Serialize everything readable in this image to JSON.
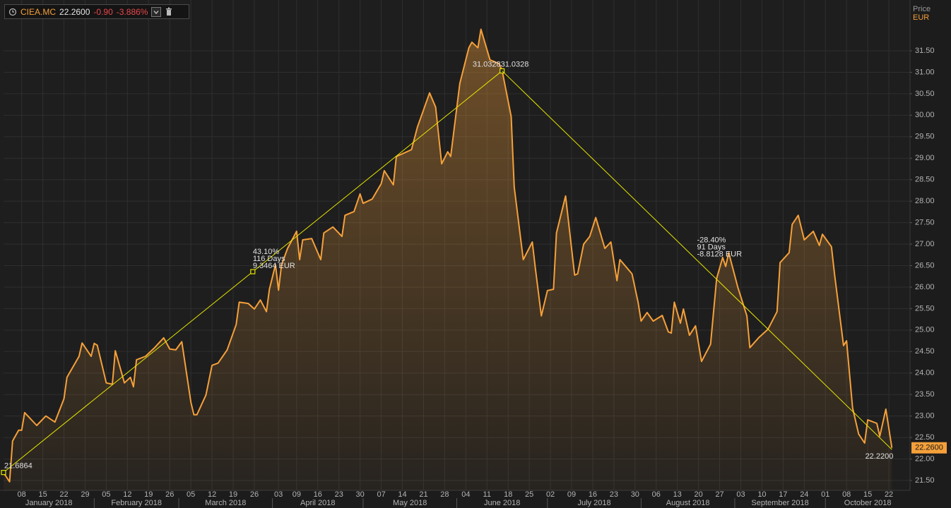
{
  "header": {
    "symbol": "CIEA.MC",
    "price": "22.2600",
    "change": "-0.90",
    "change_pct": "-3.886%"
  },
  "chart_data": {
    "type": "area",
    "y_axis_title": "Price",
    "y_axis_unit": "EUR",
    "color": "#f5a03a",
    "grid": true,
    "xlim": [
      "2018-01-02",
      "2018-10-29"
    ],
    "ylim": [
      21.27,
      32.6
    ],
    "yticks": [
      {
        "value": 21.5,
        "label": "21.50"
      },
      {
        "value": 22,
        "label": "22.00"
      },
      {
        "value": 22.5,
        "label": "22.50"
      },
      {
        "value": 23,
        "label": "23.00"
      },
      {
        "value": 23.5,
        "label": "23.50"
      },
      {
        "value": 24,
        "label": "24.00"
      },
      {
        "value": 24.5,
        "label": "24.50"
      },
      {
        "value": 25,
        "label": "25.00"
      },
      {
        "value": 25.5,
        "label": "25.50"
      },
      {
        "value": 26,
        "label": "26.00"
      },
      {
        "value": 26.5,
        "label": "26.50"
      },
      {
        "value": 27,
        "label": "27.00"
      },
      {
        "value": 27.5,
        "label": "27.50"
      },
      {
        "value": 28,
        "label": "28.00"
      },
      {
        "value": 28.5,
        "label": "28.50"
      },
      {
        "value": 29,
        "label": "29.00"
      },
      {
        "value": 29.5,
        "label": "29.50"
      },
      {
        "value": 30,
        "label": "30.00"
      },
      {
        "value": 30.5,
        "label": "30.50"
      },
      {
        "value": 31,
        "label": "31.00"
      },
      {
        "value": 31.5,
        "label": "31.50"
      }
    ],
    "xticks": [
      {
        "value": "2018-01-08",
        "label": "08"
      },
      {
        "value": "2018-01-15",
        "label": "15"
      },
      {
        "value": "2018-01-22",
        "label": "22"
      },
      {
        "value": "2018-01-29",
        "label": "29"
      },
      {
        "value": "2018-02-05",
        "label": "05"
      },
      {
        "value": "2018-02-12",
        "label": "12"
      },
      {
        "value": "2018-02-19",
        "label": "19"
      },
      {
        "value": "2018-02-26",
        "label": "26"
      },
      {
        "value": "2018-03-05",
        "label": "05"
      },
      {
        "value": "2018-03-12",
        "label": "12"
      },
      {
        "value": "2018-03-19",
        "label": "19"
      },
      {
        "value": "2018-03-26",
        "label": "26"
      },
      {
        "value": "2018-04-03",
        "label": "03"
      },
      {
        "value": "2018-04-09",
        "label": "09"
      },
      {
        "value": "2018-04-16",
        "label": "16"
      },
      {
        "value": "2018-04-23",
        "label": "23"
      },
      {
        "value": "2018-04-30",
        "label": "30"
      },
      {
        "value": "2018-05-07",
        "label": "07"
      },
      {
        "value": "2018-05-14",
        "label": "14"
      },
      {
        "value": "2018-05-21",
        "label": "21"
      },
      {
        "value": "2018-05-28",
        "label": "28"
      },
      {
        "value": "2018-06-04",
        "label": "04"
      },
      {
        "value": "2018-06-11",
        "label": "11"
      },
      {
        "value": "2018-06-18",
        "label": "18"
      },
      {
        "value": "2018-06-25",
        "label": "25"
      },
      {
        "value": "2018-07-02",
        "label": "02"
      },
      {
        "value": "2018-07-09",
        "label": "09"
      },
      {
        "value": "2018-07-16",
        "label": "16"
      },
      {
        "value": "2018-07-23",
        "label": "23"
      },
      {
        "value": "2018-07-30",
        "label": "30"
      },
      {
        "value": "2018-08-06",
        "label": "06"
      },
      {
        "value": "2018-08-13",
        "label": "13"
      },
      {
        "value": "2018-08-20",
        "label": "20"
      },
      {
        "value": "2018-08-27",
        "label": "27"
      },
      {
        "value": "2018-09-03",
        "label": "03"
      },
      {
        "value": "2018-09-10",
        "label": "10"
      },
      {
        "value": "2018-09-17",
        "label": "17"
      },
      {
        "value": "2018-09-24",
        "label": "24"
      },
      {
        "value": "2018-10-01",
        "label": "01"
      },
      {
        "value": "2018-10-08",
        "label": "08"
      },
      {
        "value": "2018-10-15",
        "label": "15"
      },
      {
        "value": "2018-10-22",
        "label": "22"
      }
    ],
    "x_month_labels": [
      {
        "value": "2018-01",
        "label": "January 2018"
      },
      {
        "value": "2018-02",
        "label": "February 2018"
      },
      {
        "value": "2018-03",
        "label": "March 2018"
      },
      {
        "value": "2018-04",
        "label": "April 2018"
      },
      {
        "value": "2018-05",
        "label": "May 2018"
      },
      {
        "value": "2018-06",
        "label": "June 2018"
      },
      {
        "value": "2018-07",
        "label": "July 2018"
      },
      {
        "value": "2018-08",
        "label": "August 2018"
      },
      {
        "value": "2018-09",
        "label": "September 2018"
      },
      {
        "value": "2018-10",
        "label": "October 2018"
      }
    ],
    "x": [
      "2018-01-02",
      "2018-01-04",
      "2018-01-05",
      "2018-01-07",
      "2018-01-08",
      "2018-01-09",
      "2018-01-13",
      "2018-01-16",
      "2018-01-19",
      "2018-01-22",
      "2018-01-23",
      "2018-01-27",
      "2018-01-28",
      "2018-01-31",
      "2018-02-01",
      "2018-02-02",
      "2018-02-05",
      "2018-02-07",
      "2018-02-08",
      "2018-02-11",
      "2018-02-13",
      "2018-02-14",
      "2018-02-15",
      "2018-02-18",
      "2018-02-21",
      "2018-02-24",
      "2018-02-26",
      "2018-02-28",
      "2018-03-02",
      "2018-03-05",
      "2018-03-06",
      "2018-03-07",
      "2018-03-10",
      "2018-03-12",
      "2018-03-14",
      "2018-03-17",
      "2018-03-20",
      "2018-03-21",
      "2018-03-24",
      "2018-03-26",
      "2018-03-28",
      "2018-03-30",
      "2018-03-31",
      "2018-04-02",
      "2018-04-03",
      "2018-04-04",
      "2018-04-06",
      "2018-04-09",
      "2018-04-10",
      "2018-04-11",
      "2018-04-14",
      "2018-04-17",
      "2018-04-18",
      "2018-04-21",
      "2018-04-24",
      "2018-04-25",
      "2018-04-28",
      "2018-04-30",
      "2018-05-01",
      "2018-05-04",
      "2018-05-07",
      "2018-05-08",
      "2018-05-11",
      "2018-05-12",
      "2018-05-17",
      "2018-05-19",
      "2018-05-23",
      "2018-05-25",
      "2018-05-27",
      "2018-05-29",
      "2018-05-30",
      "2018-06-02",
      "2018-06-05",
      "2018-06-06",
      "2018-06-08",
      "2018-06-09",
      "2018-06-12",
      "2018-06-15",
      "2018-06-16",
      "2018-06-19",
      "2018-06-20",
      "2018-06-23",
      "2018-06-26",
      "2018-06-27",
      "2018-06-29",
      "2018-07-01",
      "2018-07-03",
      "2018-07-04",
      "2018-07-07",
      "2018-07-10",
      "2018-07-11",
      "2018-07-13",
      "2018-07-15",
      "2018-07-17",
      "2018-07-20",
      "2018-07-22",
      "2018-07-24",
      "2018-07-25",
      "2018-07-29",
      "2018-07-31",
      "2018-08-01",
      "2018-08-03",
      "2018-08-05",
      "2018-08-08",
      "2018-08-10",
      "2018-08-11",
      "2018-08-12",
      "2018-08-14",
      "2018-08-15",
      "2018-08-17",
      "2018-08-19",
      "2018-08-21",
      "2018-08-24",
      "2018-08-26",
      "2018-08-28",
      "2018-08-29",
      "2018-08-30",
      "2018-09-02",
      "2018-09-05",
      "2018-09-06",
      "2018-09-09",
      "2018-09-12",
      "2018-09-15",
      "2018-09-16",
      "2018-09-19",
      "2018-09-20",
      "2018-09-22",
      "2018-09-24",
      "2018-09-27",
      "2018-09-29",
      "2018-09-30",
      "2018-10-03",
      "2018-10-04",
      "2018-10-07",
      "2018-10-08",
      "2018-10-10",
      "2018-10-12",
      "2018-10-14",
      "2018-10-15",
      "2018-10-18",
      "2018-10-19",
      "2018-10-21",
      "2018-10-23"
    ],
    "values": [
      21.68,
      21.47,
      22.42,
      22.67,
      22.67,
      23.08,
      22.78,
      23.0,
      22.86,
      23.4,
      23.9,
      24.39,
      24.7,
      24.39,
      24.69,
      24.65,
      23.77,
      23.74,
      24.52,
      23.77,
      23.9,
      23.68,
      24.31,
      24.39,
      24.59,
      24.82,
      24.56,
      24.54,
      24.73,
      23.32,
      23.03,
      23.03,
      23.49,
      24.18,
      24.23,
      24.54,
      25.13,
      25.65,
      25.62,
      25.49,
      25.7,
      25.43,
      25.95,
      26.52,
      25.93,
      26.52,
      26.9,
      27.3,
      26.64,
      27.1,
      27.13,
      26.64,
      27.26,
      27.4,
      27.18,
      27.67,
      27.76,
      28.17,
      27.95,
      28.05,
      28.41,
      28.71,
      28.38,
      29.04,
      29.2,
      29.73,
      30.52,
      30.19,
      28.87,
      29.15,
      29.04,
      30.74,
      31.57,
      31.7,
      31.57,
      32.0,
      31.29,
      31.2,
      31.04,
      29.97,
      28.33,
      26.64,
      27.05,
      26.44,
      25.33,
      25.92,
      25.95,
      27.26,
      28.12,
      26.28,
      26.31,
      27.0,
      27.18,
      27.62,
      26.9,
      27.05,
      26.15,
      26.64,
      26.31,
      25.65,
      25.21,
      25.41,
      25.21,
      25.34,
      24.96,
      24.93,
      25.65,
      25.16,
      25.49,
      24.88,
      25.1,
      24.27,
      24.67,
      26.2,
      26.69,
      26.48,
      26.8,
      26.0,
      25.33,
      24.59,
      24.83,
      25.02,
      25.43,
      26.57,
      26.8,
      27.46,
      27.67,
      27.1,
      27.3,
      26.97,
      27.23,
      26.94,
      26.31,
      24.64,
      24.75,
      23.19,
      22.58,
      22.37,
      22.91,
      22.83,
      22.53,
      23.16,
      22.26
    ],
    "trendlines": [
      {
        "x": [
          "2018-01-02",
          "2018-06-16"
        ],
        "y": [
          21.6864,
          31.0328
        ],
        "value_labels": [
          "21.6864",
          "31.0328"
        ],
        "stats": [
          "43.10%",
          "116 Days",
          "9.3464 EUR"
        ]
      },
      {
        "x": [
          "2018-06-16",
          "2018-10-23"
        ],
        "y": [
          31.0328,
          22.22
        ],
        "value_labels": [
          "31.0328",
          "22.2200"
        ],
        "stats": [
          "-28.40%",
          "91 Days",
          "-8.8128 EUR"
        ]
      }
    ],
    "trendline_color": "#e6e600"
  }
}
